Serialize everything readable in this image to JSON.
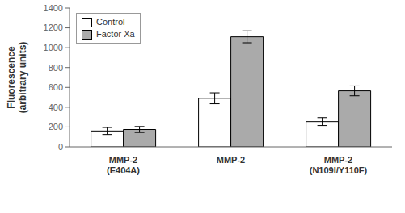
{
  "chart_data": {
    "type": "bar",
    "categories": [
      "MMP-2\n(E404A)",
      "MMP-2",
      "MMP-2\n(N109I/Y110F)"
    ],
    "series": [
      {
        "name": "Control",
        "color": "#ffffff",
        "values": [
          160,
          490,
          255
        ],
        "errors": [
          35,
          55,
          40
        ]
      },
      {
        "name": "Factor Xa",
        "color": "#aaaaaa",
        "values": [
          175,
          1110,
          565
        ],
        "errors": [
          30,
          60,
          50
        ]
      }
    ],
    "ylabel": "Fluorescence\n(arbitrary units)",
    "ylim": [
      0,
      1400
    ],
    "yticks": [
      0,
      200,
      400,
      600,
      800,
      1000,
      1200,
      1400
    ],
    "legend": "upper left",
    "grid": false
  }
}
